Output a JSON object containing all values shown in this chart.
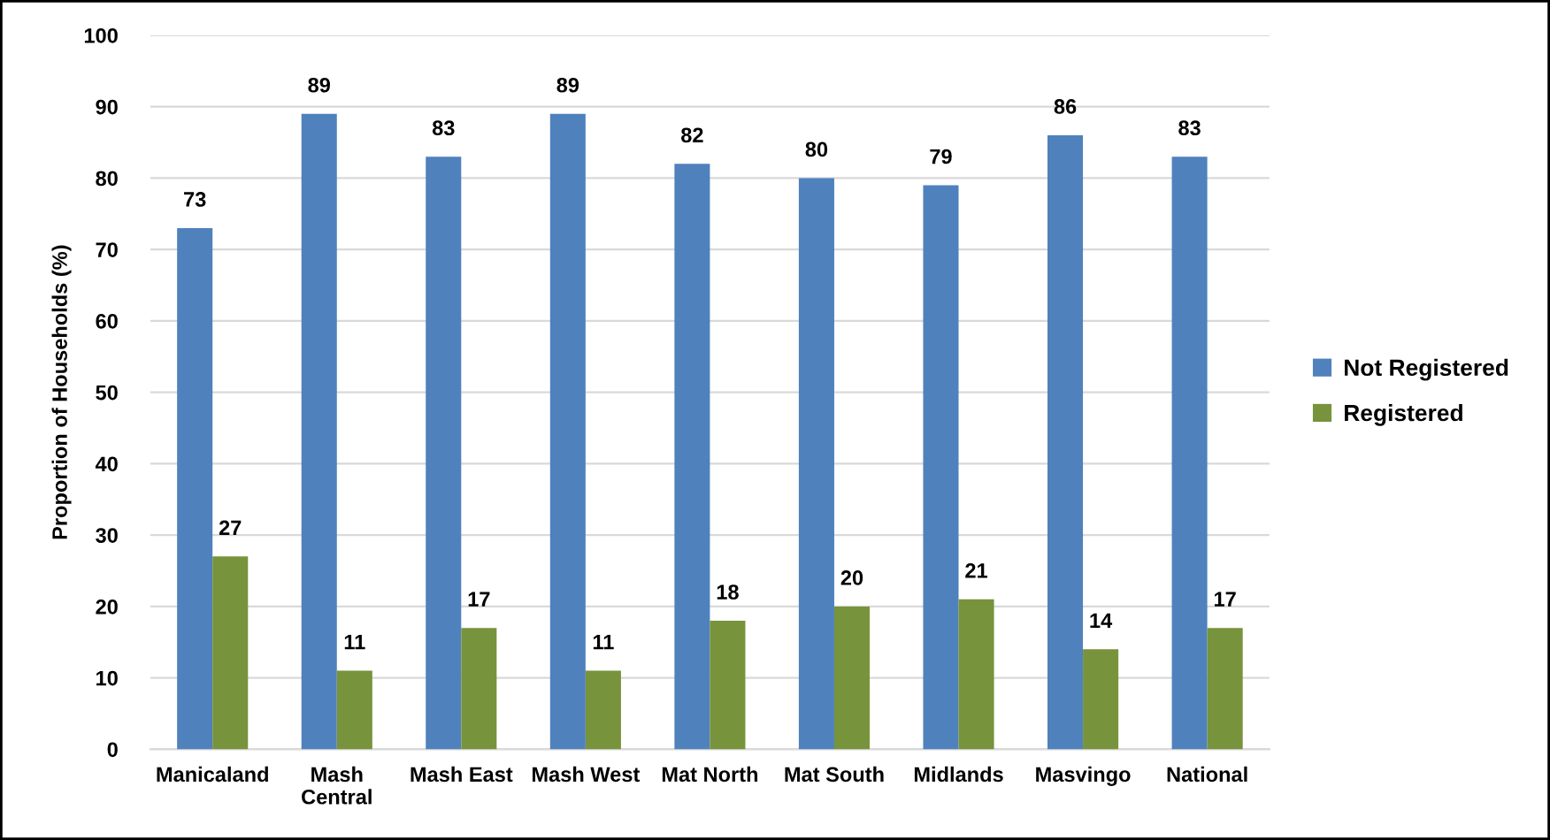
{
  "chart_data": {
    "type": "bar",
    "ylabel": "Proportion of Households (%)",
    "categories": [
      "Manicaland",
      "Mash\nCentral",
      "Mash East",
      "Mash West",
      "Mat North",
      "Mat South",
      "Midlands",
      "Masvingo",
      "National"
    ],
    "series": [
      {
        "name": "Not Registered",
        "color": "#4f81bd",
        "values": [
          73,
          89,
          83,
          89,
          82,
          80,
          79,
          86,
          83
        ]
      },
      {
        "name": "Registered",
        "color": "#77933c",
        "values": [
          27,
          11,
          17,
          11,
          18,
          20,
          21,
          14,
          17
        ]
      }
    ],
    "ylim": [
      0,
      100
    ],
    "yticks": [
      0,
      10,
      20,
      30,
      40,
      50,
      60,
      70,
      80,
      90,
      100
    ],
    "grid": "y",
    "legend": "right",
    "data_labels": true
  }
}
